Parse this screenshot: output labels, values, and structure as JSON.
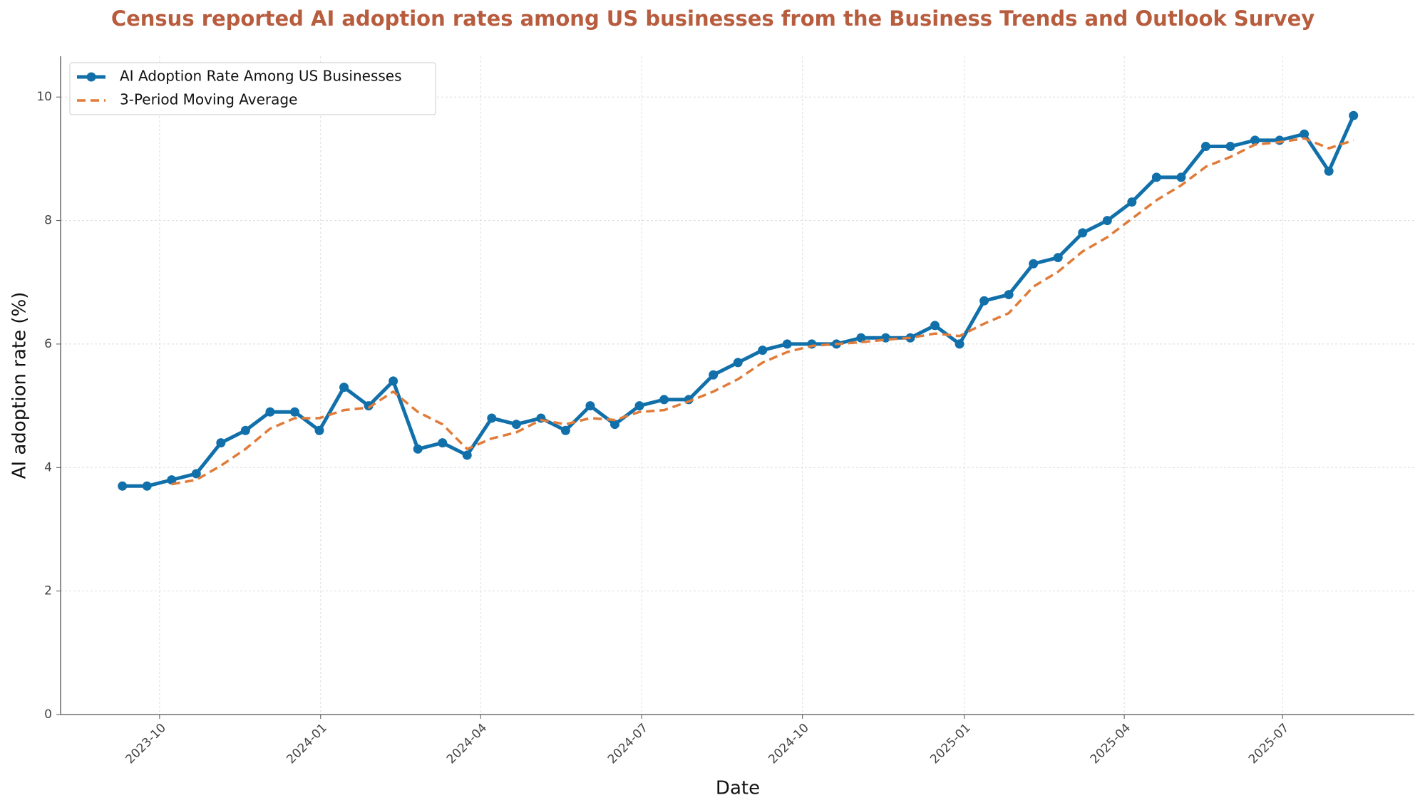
{
  "chart_data": {
    "type": "line",
    "title": "Census reported AI adoption rates among US businesses from the Business Trends and Outlook Survey",
    "x_label": "Date",
    "y_label": "AI adoption rate (%)",
    "series": [
      {
        "name": "AI Adoption Rate Among US Businesses",
        "color": "#1170aa",
        "style": "solid",
        "markers": true,
        "values": [
          3.7,
          3.7,
          3.8,
          3.9,
          4.4,
          4.6,
          4.9,
          4.9,
          4.6,
          5.3,
          5.0,
          5.4,
          4.3,
          4.4,
          4.2,
          4.8,
          4.7,
          4.8,
          4.6,
          5.0,
          4.7,
          5.0,
          5.1,
          5.1,
          5.5,
          5.7,
          5.9,
          6.0,
          6.0,
          6.0,
          6.1,
          6.1,
          6.1,
          6.3,
          6.0,
          6.7,
          6.8,
          7.3,
          7.4,
          7.8,
          8.0,
          8.3,
          8.7,
          8.7,
          9.2,
          9.2,
          9.3,
          9.3,
          9.4,
          8.8,
          9.7
        ]
      },
      {
        "name": "3-Period Moving Average",
        "color": "#e07b39",
        "style": "dashed",
        "markers": false,
        "values": [
          null,
          null,
          3.73,
          3.8,
          4.03,
          4.3,
          4.63,
          4.8,
          4.8,
          4.93,
          4.97,
          5.23,
          4.9,
          4.7,
          4.3,
          4.47,
          4.57,
          4.77,
          4.7,
          4.8,
          4.77,
          4.9,
          4.93,
          5.07,
          5.23,
          5.43,
          5.7,
          5.87,
          5.97,
          6.0,
          6.03,
          6.07,
          6.1,
          6.17,
          6.13,
          6.33,
          6.5,
          6.93,
          7.17,
          7.5,
          7.73,
          8.03,
          8.33,
          8.57,
          8.87,
          9.03,
          9.23,
          9.27,
          9.33,
          9.17,
          9.3
        ]
      }
    ],
    "xlim": [
      -2.51,
      52.47
    ],
    "xticks": [
      {
        "value": 1.51,
        "label": "2023-10"
      },
      {
        "value": 8.05,
        "label": "2024-01"
      },
      {
        "value": 14.55,
        "label": "2024-04"
      },
      {
        "value": 21.09,
        "label": "2024-07"
      },
      {
        "value": 27.62,
        "label": "2024-10"
      },
      {
        "value": 34.19,
        "label": "2025-01"
      },
      {
        "value": 40.69,
        "label": "2025-04"
      },
      {
        "value": 47.12,
        "label": "2025-07"
      }
    ],
    "ylim": [
      0,
      10.66
    ],
    "yticks": [
      0,
      2,
      4,
      6,
      8,
      10
    ],
    "grid": true,
    "legend": "upper left"
  }
}
